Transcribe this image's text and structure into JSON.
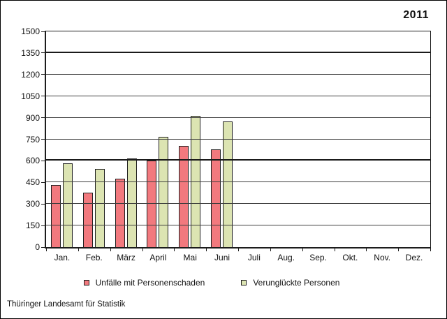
{
  "header": {
    "title": "2011"
  },
  "footer": {
    "source": "Thüringer Landesamt für Statistik"
  },
  "chart_data": {
    "type": "bar",
    "title": "2011",
    "categories": [
      "Jan.",
      "Feb.",
      "März",
      "April",
      "Mai",
      "Juni",
      "Juli",
      "Aug.",
      "Sep.",
      "Okt.",
      "Nov.",
      "Dez."
    ],
    "series": [
      {
        "key": "unfaelle",
        "name": "Unfälle mit Personenschaden",
        "color": "#f2797e",
        "values": [
          430,
          380,
          475,
          600,
          705,
          680,
          null,
          null,
          null,
          null,
          null,
          null
        ]
      },
      {
        "key": "verunglueckte",
        "name": "Verunglückte Personen",
        "color": "#dce4b2",
        "values": [
          585,
          545,
          615,
          765,
          915,
          875,
          null,
          null,
          null,
          null,
          null,
          null
        ]
      }
    ],
    "xlabel": "",
    "ylabel": "",
    "ylim": [
      0,
      1500
    ],
    "yticks": [
      0,
      150,
      300,
      450,
      600,
      750,
      900,
      1050,
      1200,
      1350,
      1500
    ],
    "grid": true,
    "gridlines_over_bars": true,
    "emphasized_gridlines": [
      600,
      1350
    ],
    "legend_position": "bottom"
  }
}
